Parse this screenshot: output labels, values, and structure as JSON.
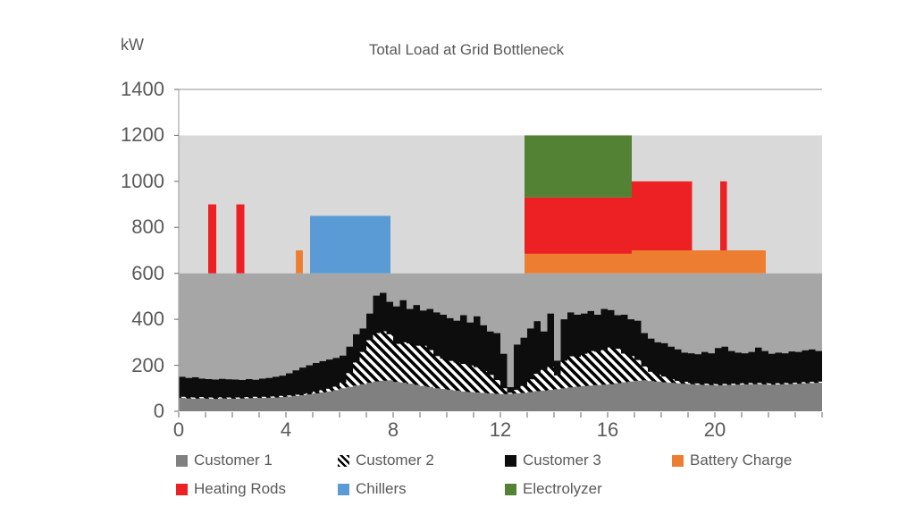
{
  "title": "Total Load at Grid Bottleneck",
  "y_axis": {
    "unit_label": "kW",
    "tick_labels": [
      "1400",
      "1200",
      "1000",
      "800",
      "600",
      "400",
      "200",
      "0"
    ],
    "tick_values": [
      1400,
      1200,
      1000,
      800,
      600,
      400,
      200,
      0
    ],
    "max": 1400
  },
  "x_axis": {
    "labeled_tick_labels": [
      "0",
      "4",
      "8",
      "12",
      "16",
      "20"
    ],
    "labeled_tick_values": [
      0,
      4,
      8,
      12,
      16,
      20
    ],
    "minor_step_hours": 1,
    "max_hours": 24
  },
  "colors": {
    "customer1": "#808080",
    "customer2_hatch_fg": "#000000",
    "customer2_hatch_bg": "#ffffff",
    "customer3": "#0d0d0d",
    "battery_charge": "#ED7D31",
    "heating_rods": "#ED2024",
    "chillers": "#5B9BD5",
    "electrolyzer": "#548235",
    "band_low": "#A6A6A6",
    "band_high": "#D9D9D9",
    "text": "#595959",
    "axis_line": "#A6A6A6",
    "tick": "#7F7F7F"
  },
  "legend": {
    "items": [
      {
        "label": "Customer 1",
        "swatch": "customer1",
        "row": 0,
        "col": 0
      },
      {
        "label": "Customer 2",
        "swatch": "customer2",
        "row": 0,
        "col": 1
      },
      {
        "label": "Customer 3",
        "swatch": "customer3",
        "row": 0,
        "col": 2
      },
      {
        "label": "Battery Charge",
        "swatch": "battery_charge",
        "row": 0,
        "col": 3
      },
      {
        "label": "Heating Rods",
        "swatch": "heating_rods",
        "row": 1,
        "col": 0
      },
      {
        "label": "Chillers",
        "swatch": "chillers",
        "row": 1,
        "col": 1
      },
      {
        "label": "Electrolyzer",
        "swatch": "electrolyzer",
        "row": 1,
        "col": 2
      }
    ]
  },
  "chart_data": {
    "type": "bar",
    "stacked": true,
    "title": "Total Load at Grid Bottleneck",
    "ylabel": "kW",
    "ylim": [
      0,
      1400
    ],
    "xlim": [
      0,
      24
    ],
    "x_start": 0,
    "x_step_hours": 0.25,
    "background_bands_kw": [
      {
        "from": 0,
        "to": 600,
        "color": "#A6A6A6"
      },
      {
        "from": 600,
        "to": 1200,
        "color": "#D9D9D9"
      },
      {
        "from": 1200,
        "to": 1400,
        "color": "#FFFFFF"
      }
    ],
    "series": [
      {
        "name": "Customer 1",
        "style": "solid-gray",
        "values": [
          58,
          56,
          55,
          57,
          55,
          54,
          56,
          55,
          55,
          56,
          57,
          58,
          58,
          59,
          60,
          62,
          64,
          67,
          70,
          74,
          78,
          82,
          86,
          92,
          100,
          106,
          112,
          118,
          124,
          130,
          133,
          135,
          128,
          125,
          120,
          115,
          110,
          106,
          100,
          97,
          94,
          90,
          86,
          84,
          82,
          80,
          78,
          76,
          75,
          76,
          78,
          80,
          84,
          88,
          90,
          93,
          96,
          100,
          104,
          107,
          110,
          112,
          114,
          116,
          118,
          122,
          126,
          130,
          133,
          135,
          132,
          129,
          126,
          124,
          122,
          120,
          118,
          116,
          115,
          114,
          113,
          114,
          115,
          116,
          117,
          118,
          118,
          117,
          116,
          117,
          118,
          119,
          120,
          122,
          123,
          124
        ]
      },
      {
        "name": "Customer 2",
        "style": "black-white-diagonal-hatch",
        "values": [
          5,
          5,
          5,
          5,
          5,
          5,
          5,
          5,
          5,
          5,
          5,
          5,
          5,
          5,
          5,
          5,
          5,
          5,
          5,
          5,
          8,
          10,
          12,
          15,
          25,
          60,
          100,
          140,
          185,
          210,
          215,
          200,
          165,
          175,
          175,
          170,
          175,
          160,
          140,
          132,
          125,
          122,
          120,
          115,
          110,
          95,
          80,
          60,
          25,
          5,
          15,
          30,
          55,
          75,
          90,
          100,
          60,
          120,
          135,
          130,
          140,
          150,
          145,
          150,
          160,
          150,
          125,
          110,
          90,
          60,
          40,
          30,
          25,
          15,
          10,
          8,
          5,
          5,
          5,
          5,
          5,
          5,
          5,
          5,
          5,
          5,
          5,
          5,
          5,
          5,
          5,
          5,
          5,
          5,
          5,
          5
        ]
      },
      {
        "name": "Customer 3",
        "style": "solid-black",
        "values": [
          87,
          84,
          88,
          80,
          80,
          79,
          80,
          79,
          78,
          75,
          78,
          74,
          79,
          81,
          85,
          88,
          96,
          106,
          115,
          121,
          124,
          126,
          127,
          125,
          117,
          115,
          123,
          102,
          116,
          163,
          167,
          141,
          163,
          183,
          150,
          177,
          153,
          179,
          190,
          191,
          186,
          182,
          212,
          187,
          221,
          199,
          189,
          204,
          150,
          24,
          197,
          210,
          221,
          229,
          167,
          232,
          64,
          180,
          191,
          183,
          175,
          174,
          161,
          179,
          162,
          146,
          169,
          160,
          171,
          145,
          144,
          141,
          145,
          142,
          137,
          127,
          129,
          127,
          138,
          133,
          157,
          162,
          142,
          134,
          130,
          135,
          154,
          140,
          129,
          133,
          129,
          136,
          133,
          138,
          141,
          133
        ]
      }
    ],
    "flex_blocks": [
      {
        "name": "Heating Rods",
        "x0": 1.1,
        "x1": 1.4,
        "kw0": 600,
        "kw1": 900,
        "color": "#ED2024"
      },
      {
        "name": "Heating Rods",
        "x0": 2.15,
        "x1": 2.45,
        "kw0": 600,
        "kw1": 900,
        "color": "#ED2024"
      },
      {
        "name": "Battery Charge",
        "x0": 4.37,
        "x1": 4.63,
        "kw0": 600,
        "kw1": 700,
        "color": "#ED7D31"
      },
      {
        "name": "Chillers",
        "x0": 4.9,
        "x1": 7.9,
        "kw0": 600,
        "kw1": 850,
        "color": "#5B9BD5"
      },
      {
        "name": "Battery Charge",
        "x0": 12.9,
        "x1": 16.9,
        "kw0": 600,
        "kw1": 685,
        "color": "#ED7D31"
      },
      {
        "name": "Heating Rods",
        "x0": 12.9,
        "x1": 16.9,
        "kw0": 685,
        "kw1": 930,
        "color": "#ED2024"
      },
      {
        "name": "Electrolyzer",
        "x0": 12.9,
        "x1": 16.9,
        "kw0": 930,
        "kw1": 1200,
        "color": "#548235"
      },
      {
        "name": "Battery Charge",
        "x0": 16.9,
        "x1": 21.9,
        "kw0": 600,
        "kw1": 700,
        "color": "#ED7D31"
      },
      {
        "name": "Heating Rods",
        "x0": 16.9,
        "x1": 19.15,
        "kw0": 700,
        "kw1": 1000,
        "color": "#ED2024"
      },
      {
        "name": "Heating Rods",
        "x0": 20.2,
        "x1": 20.45,
        "kw0": 700,
        "kw1": 1000,
        "color": "#ED2024"
      }
    ]
  }
}
